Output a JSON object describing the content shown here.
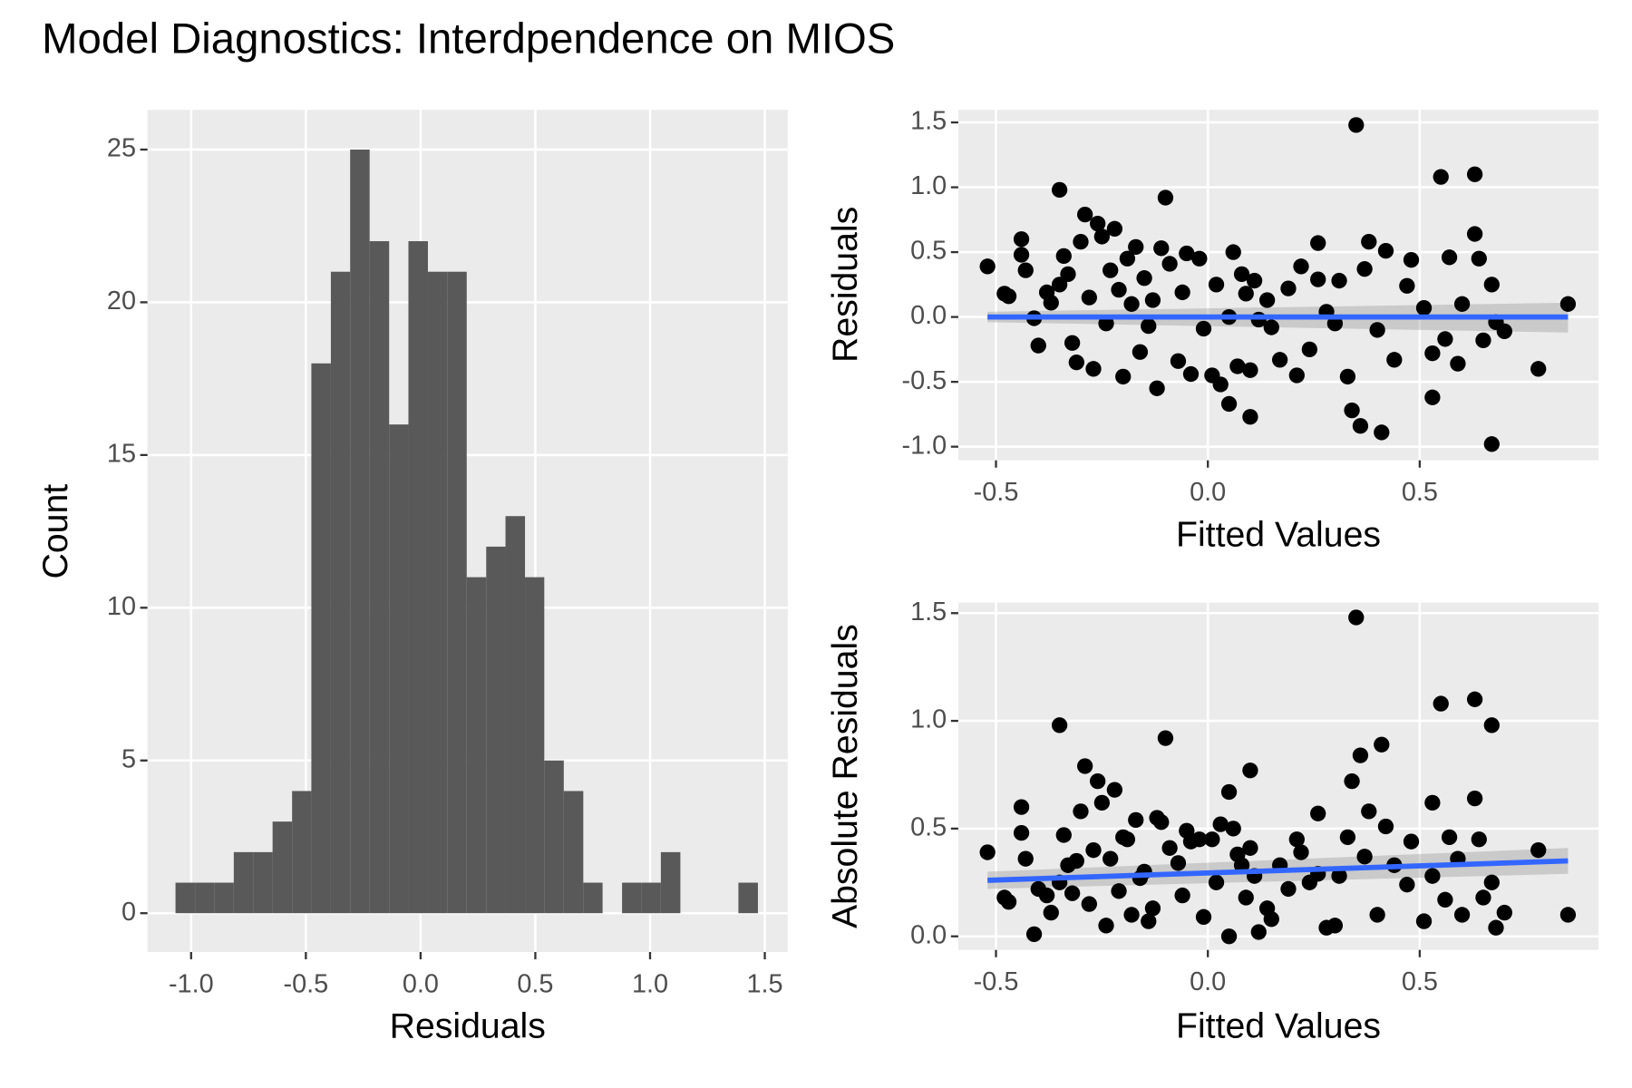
{
  "title": "Model Diagnostics: Interdpendence on MIOS",
  "chart_data": [
    {
      "type": "histogram",
      "xlabel": "Residuals",
      "ylabel": "Count",
      "color": "#595959",
      "bins": [
        -1.068,
        -0.983,
        -0.899,
        -0.814,
        -0.73,
        -0.645,
        -0.56,
        -0.476,
        -0.391,
        -0.307,
        -0.222,
        -0.137,
        -0.053,
        0.032,
        0.116,
        0.201,
        0.286,
        0.37,
        0.455,
        0.539,
        0.624,
        0.709,
        0.793,
        0.878,
        0.962,
        1.047,
        1.132,
        1.216,
        1.301,
        1.385,
        1.47
      ],
      "values": [
        1,
        1,
        1,
        2,
        2,
        3,
        4,
        18,
        21,
        25,
        22,
        16,
        22,
        21,
        21,
        11,
        12,
        13,
        11,
        5,
        4,
        1,
        0,
        1,
        1,
        2,
        0,
        0,
        0,
        1
      ],
      "xlim": [
        -1.19,
        1.6
      ],
      "xticks": [
        {
          "value": -1,
          "label": "-1.0"
        },
        -0.5,
        {
          "value": 0,
          "label": "0.0"
        },
        0.5,
        {
          "value": 1,
          "label": "1.0"
        },
        1.5
      ],
      "ylim": [
        -1.27,
        26.3
      ],
      "yticks": [
        0,
        5,
        10,
        15,
        20,
        25
      ],
      "grid": true
    },
    {
      "type": "scatter",
      "xlabel": "Fitted Values",
      "ylabel": "Residuals",
      "points": {
        "color": "#000000",
        "x": [
          -0.52,
          -0.48,
          -0.47,
          -0.44,
          -0.44,
          -0.43,
          -0.41,
          -0.4,
          -0.38,
          -0.37,
          -0.35,
          -0.35,
          -0.34,
          -0.33,
          -0.32,
          -0.31,
          -0.3,
          -0.29,
          -0.28,
          -0.27,
          -0.26,
          -0.25,
          -0.24,
          -0.23,
          -0.22,
          -0.21,
          -0.2,
          -0.19,
          -0.18,
          -0.17,
          -0.16,
          -0.15,
          -0.14,
          -0.13,
          -0.12,
          -0.11,
          -0.1,
          -0.09,
          -0.07,
          -0.06,
          -0.05,
          -0.04,
          -0.02,
          -0.01,
          0.01,
          0.02,
          0.03,
          0.05,
          0.05,
          0.06,
          0.07,
          0.08,
          0.09,
          0.1,
          0.1,
          0.11,
          0.12,
          0.14,
          0.15,
          0.17,
          0.19,
          0.21,
          0.22,
          0.24,
          0.26,
          0.26,
          0.28,
          0.3,
          0.31,
          0.33,
          0.34,
          0.35,
          0.36,
          0.37,
          0.38,
          0.4,
          0.41,
          0.42,
          0.44,
          0.47,
          0.48,
          0.51,
          0.53,
          0.53,
          0.55,
          0.56,
          0.57,
          0.59,
          0.6,
          0.63,
          0.63,
          0.64,
          0.65,
          0.67,
          0.67,
          0.68,
          0.7,
          0.78,
          0.85
        ],
        "values": [
          0.39,
          0.18,
          0.16,
          0.6,
          0.48,
          0.36,
          -0.01,
          -0.22,
          0.19,
          0.11,
          0.98,
          0.25,
          0.47,
          0.33,
          -0.2,
          -0.35,
          0.58,
          0.79,
          0.15,
          -0.4,
          0.72,
          0.62,
          -0.05,
          0.36,
          0.68,
          0.21,
          -0.46,
          0.45,
          0.1,
          0.54,
          -0.27,
          0.3,
          -0.07,
          0.13,
          -0.55,
          0.53,
          0.92,
          0.41,
          -0.34,
          0.19,
          0.49,
          -0.44,
          0.45,
          -0.09,
          -0.45,
          0.25,
          -0.52,
          0.0,
          -0.67,
          0.5,
          -0.38,
          0.33,
          0.18,
          -0.41,
          -0.77,
          0.28,
          -0.02,
          0.13,
          -0.08,
          -0.33,
          0.22,
          -0.45,
          0.39,
          -0.25,
          0.57,
          0.29,
          0.04,
          -0.05,
          0.28,
          -0.46,
          -0.72,
          1.48,
          -0.84,
          0.37,
          0.58,
          -0.1,
          -0.89,
          0.51,
          -0.33,
          0.24,
          0.44,
          0.07,
          -0.28,
          -0.62,
          1.08,
          -0.17,
          0.46,
          -0.36,
          0.1,
          1.1,
          0.64,
          0.45,
          -0.18,
          0.25,
          -0.98,
          -0.04,
          -0.11,
          -0.4,
          0.1
        ]
      },
      "fit": {
        "color": "#3366ff",
        "x": [
          -0.52,
          0.85
        ],
        "values": [
          0.0,
          0.0
        ],
        "lower": [
          -0.04,
          -0.12
        ],
        "upper": [
          0.04,
          0.11
        ]
      },
      "xlim": [
        -0.589,
        0.922
      ],
      "xticks": [
        -0.5,
        {
          "value": 0,
          "label": "0.0"
        },
        0.5
      ],
      "ylim": [
        -1.105,
        1.597
      ],
      "yticks": [
        {
          "value": -1,
          "label": "-1.0"
        },
        -0.5,
        {
          "value": 0,
          "label": "0.0"
        },
        0.5,
        {
          "value": 1,
          "label": "1.0"
        },
        1.5
      ],
      "grid": true
    },
    {
      "type": "scatter",
      "xlabel": "Fitted Values",
      "ylabel": "Absolute Residuals",
      "points": {
        "color": "#000000",
        "x": [
          -0.52,
          -0.48,
          -0.47,
          -0.44,
          -0.44,
          -0.43,
          -0.41,
          -0.4,
          -0.38,
          -0.37,
          -0.35,
          -0.35,
          -0.34,
          -0.33,
          -0.32,
          -0.31,
          -0.3,
          -0.29,
          -0.28,
          -0.27,
          -0.26,
          -0.25,
          -0.24,
          -0.23,
          -0.22,
          -0.21,
          -0.2,
          -0.19,
          -0.18,
          -0.17,
          -0.16,
          -0.15,
          -0.14,
          -0.13,
          -0.12,
          -0.11,
          -0.1,
          -0.09,
          -0.07,
          -0.06,
          -0.05,
          -0.04,
          -0.02,
          -0.01,
          0.01,
          0.02,
          0.03,
          0.05,
          0.05,
          0.06,
          0.07,
          0.08,
          0.09,
          0.1,
          0.1,
          0.11,
          0.12,
          0.14,
          0.15,
          0.17,
          0.19,
          0.21,
          0.22,
          0.24,
          0.26,
          0.26,
          0.28,
          0.3,
          0.31,
          0.33,
          0.34,
          0.35,
          0.36,
          0.37,
          0.38,
          0.4,
          0.41,
          0.42,
          0.44,
          0.47,
          0.48,
          0.51,
          0.53,
          0.53,
          0.55,
          0.56,
          0.57,
          0.59,
          0.6,
          0.63,
          0.63,
          0.64,
          0.65,
          0.67,
          0.67,
          0.68,
          0.7,
          0.78,
          0.85
        ],
        "values": [
          0.39,
          0.18,
          0.16,
          0.6,
          0.48,
          0.36,
          0.01,
          0.22,
          0.19,
          0.11,
          0.98,
          0.25,
          0.47,
          0.33,
          0.2,
          0.35,
          0.58,
          0.79,
          0.15,
          0.4,
          0.72,
          0.62,
          0.05,
          0.36,
          0.68,
          0.21,
          0.46,
          0.45,
          0.1,
          0.54,
          0.27,
          0.3,
          0.07,
          0.13,
          0.55,
          0.53,
          0.92,
          0.41,
          0.34,
          0.19,
          0.49,
          0.44,
          0.45,
          0.09,
          0.45,
          0.25,
          0.52,
          0.0,
          0.67,
          0.5,
          0.38,
          0.33,
          0.18,
          0.41,
          0.77,
          0.28,
          0.02,
          0.13,
          0.08,
          0.33,
          0.22,
          0.45,
          0.39,
          0.25,
          0.57,
          0.29,
          0.04,
          0.05,
          0.28,
          0.46,
          0.72,
          1.48,
          0.84,
          0.37,
          0.58,
          0.1,
          0.89,
          0.51,
          0.33,
          0.24,
          0.44,
          0.07,
          0.28,
          0.62,
          1.08,
          0.17,
          0.46,
          0.36,
          0.1,
          1.1,
          0.64,
          0.45,
          0.18,
          0.25,
          0.98,
          0.04,
          0.11,
          0.4,
          0.1
        ]
      },
      "fit": {
        "color": "#3366ff",
        "x": [
          -0.52,
          0.85
        ],
        "values": [
          0.26,
          0.35
        ],
        "lower": [
          0.22,
          0.29
        ],
        "upper": [
          0.3,
          0.41
        ]
      },
      "xlim": [
        -0.589,
        0.922
      ],
      "xticks": [
        -0.5,
        {
          "value": 0,
          "label": "0.0"
        },
        0.5
      ],
      "ylim": [
        -0.063,
        1.549
      ],
      "yticks": [
        {
          "value": 0,
          "label": "0.0"
        },
        0.5,
        {
          "value": 1,
          "label": "1.0"
        },
        1.5
      ],
      "grid": true
    }
  ]
}
